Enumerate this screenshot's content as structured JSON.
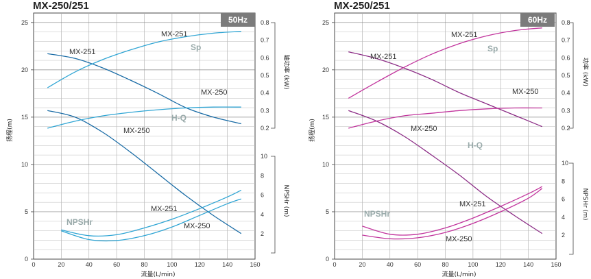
{
  "chart_data": [
    {
      "type": "line",
      "title": "MX-250/251",
      "badge": "50Hz",
      "xlabel": "流量(L/min)",
      "ylabel_left": "扬程(m)",
      "ylabel_power": "轴功率 (kW)",
      "ylabel_npsh": "NPSHr (m)",
      "xlim": [
        0,
        160
      ],
      "ylim_head": [
        0,
        26
      ],
      "ylim_power": [
        0.1,
        0.8
      ],
      "ylim_npsh": [
        0,
        10
      ],
      "grid": true,
      "x_ticks": [
        "0",
        "20",
        "40",
        "60",
        "80",
        "100",
        "120",
        "140",
        "160"
      ],
      "head_ticks": [
        "0",
        "5",
        "10",
        "15",
        "20",
        "25"
      ],
      "power_ticks": [
        "0.2",
        "0.3",
        "0.4",
        "0.5",
        "0.6",
        "0.7",
        "0.8"
      ],
      "npsh_ticks": [
        "2",
        "4",
        "6",
        "8",
        "10"
      ],
      "line_color": "#1a6ca6",
      "group_labels": [
        "Sp",
        "H-Q",
        "NPSHr"
      ],
      "series": [
        {
          "name": "MX-251",
          "kind": "head",
          "axis": "head",
          "color": "#1a6ca6",
          "x": [
            10,
            30,
            50,
            70,
            90,
            110,
            130,
            150
          ],
          "y": [
            21.7,
            21.2,
            20.2,
            18.9,
            17.5,
            16.0,
            15.0,
            14.3
          ]
        },
        {
          "name": "MX-250",
          "kind": "head",
          "axis": "head",
          "color": "#1a6ca6",
          "x": [
            10,
            30,
            50,
            70,
            90,
            110,
            130,
            150
          ],
          "y": [
            15.7,
            15.0,
            13.4,
            11.3,
            9.0,
            6.7,
            4.6,
            2.7
          ]
        },
        {
          "name": "MX-251",
          "kind": "power",
          "axis": "power",
          "color": "#2fa5d4",
          "x": [
            10,
            30,
            50,
            70,
            90,
            110,
            130,
            150
          ],
          "y": [
            0.43,
            0.52,
            0.59,
            0.645,
            0.69,
            0.72,
            0.74,
            0.75
          ]
        },
        {
          "name": "MX-250",
          "kind": "power",
          "axis": "power",
          "color": "#2fa5d4",
          "x": [
            10,
            30,
            50,
            70,
            90,
            110,
            130,
            150
          ],
          "y": [
            0.2,
            0.24,
            0.27,
            0.29,
            0.305,
            0.315,
            0.32,
            0.32
          ]
        },
        {
          "name": "MX-251",
          "kind": "npsh",
          "axis": "npsh",
          "color": "#2fa5d4",
          "x": [
            20,
            40,
            60,
            80,
            100,
            120,
            140,
            150
          ],
          "y": [
            2.4,
            1.8,
            1.9,
            2.6,
            3.5,
            4.6,
            5.8,
            6.5
          ]
        },
        {
          "name": "MX-250",
          "kind": "npsh",
          "axis": "npsh",
          "color": "#2fa5d4",
          "x": [
            20,
            40,
            60,
            80,
            100,
            120,
            140,
            150
          ],
          "y": [
            2.3,
            1.4,
            1.3,
            1.8,
            2.7,
            3.9,
            5.1,
            5.6
          ]
        }
      ]
    },
    {
      "type": "line",
      "title": "MX-250/251",
      "badge": "60Hz",
      "xlabel": "流量(L/min)",
      "ylabel_left": "扬程(m)",
      "ylabel_power": "功率 (kW)",
      "ylabel_npsh": "NPSHr (m)",
      "xlim": [
        0,
        160
      ],
      "ylim_head": [
        0,
        26
      ],
      "ylim_power": [
        0.1,
        0.8
      ],
      "ylim_npsh": [
        0,
        10
      ],
      "grid": true,
      "x_ticks": [
        "0",
        "20",
        "40",
        "60",
        "80",
        "100",
        "120",
        "140",
        "160"
      ],
      "head_ticks": [
        "0",
        "5",
        "10",
        "15",
        "20",
        "25"
      ],
      "power_ticks": [
        "0.2",
        "0.3",
        "0.4",
        "0.5",
        "0.6",
        "0.7",
        "0.8"
      ],
      "npsh_ticks": [
        "2",
        "4",
        "6",
        "8",
        "10"
      ],
      "line_color": "#8c2d86",
      "group_labels": [
        "Sp",
        "H-Q",
        "NPSHr"
      ],
      "series": [
        {
          "name": "MX-251",
          "kind": "head",
          "axis": "head",
          "color": "#8c2d86",
          "x": [
            10,
            30,
            50,
            70,
            90,
            110,
            130,
            150
          ],
          "y": [
            21.9,
            21.2,
            20.2,
            19.0,
            17.6,
            16.4,
            15.2,
            14.0
          ]
        },
        {
          "name": "MX-250",
          "kind": "head",
          "axis": "head",
          "color": "#8c2d86",
          "x": [
            10,
            30,
            50,
            70,
            90,
            110,
            130,
            150
          ],
          "y": [
            15.7,
            14.6,
            13.0,
            11.0,
            8.9,
            6.6,
            4.6,
            2.7
          ]
        },
        {
          "name": "MX-251",
          "kind": "power",
          "axis": "power",
          "color": "#c2359d",
          "x": [
            10,
            30,
            50,
            70,
            90,
            110,
            130,
            150
          ],
          "y": [
            0.37,
            0.46,
            0.545,
            0.62,
            0.68,
            0.725,
            0.755,
            0.77
          ]
        },
        {
          "name": "MX-250",
          "kind": "power",
          "axis": "power",
          "color": "#c2359d",
          "x": [
            10,
            30,
            50,
            70,
            90,
            110,
            130,
            150
          ],
          "y": [
            0.2,
            0.24,
            0.27,
            0.285,
            0.3,
            0.31,
            0.315,
            0.315
          ]
        },
        {
          "name": "MX-251",
          "kind": "npsh",
          "axis": "npsh",
          "color": "#c2359d",
          "x": [
            20,
            40,
            60,
            80,
            100,
            120,
            140,
            150
          ],
          "y": [
            3.0,
            2.1,
            2.1,
            2.8,
            3.9,
            5.2,
            6.6,
            7.4
          ]
        },
        {
          "name": "MX-250",
          "kind": "npsh",
          "axis": "npsh",
          "color": "#c2359d",
          "x": [
            20,
            40,
            60,
            80,
            100,
            120,
            140,
            150
          ],
          "y": [
            2.0,
            1.6,
            1.7,
            2.3,
            3.3,
            4.6,
            6.1,
            7.2
          ]
        }
      ]
    }
  ]
}
